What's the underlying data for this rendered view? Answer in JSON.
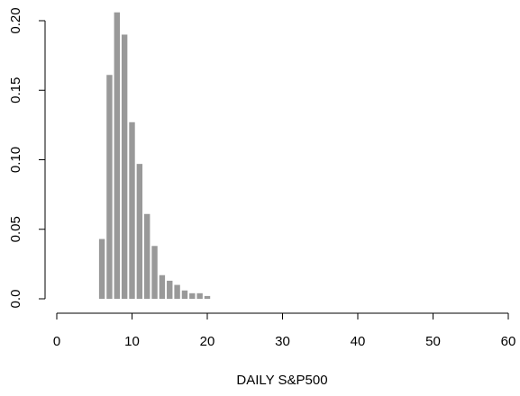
{
  "chart_data": {
    "type": "bar",
    "x_label": "DAILY S&P500",
    "x": [
      6,
      7,
      8,
      9,
      10,
      11,
      12,
      13,
      14,
      15,
      16,
      17,
      18,
      19,
      20
    ],
    "values": [
      0.043,
      0.161,
      0.206,
      0.19,
      0.127,
      0.097,
      0.061,
      0.038,
      0.017,
      0.013,
      0.01,
      0.006,
      0.004,
      0.004,
      0.002
    ],
    "color": "#999999",
    "xlim": [
      0,
      60
    ],
    "xticks": [
      0,
      10,
      20,
      30,
      40,
      50,
      60
    ],
    "ylim": [
      0,
      0.2
    ],
    "yticks": [
      {
        "value": 0,
        "label": "0.0"
      },
      0.05,
      {
        "value": 0.1,
        "label": "0.10"
      },
      0.15,
      {
        "value": 0.2,
        "label": "0.20"
      }
    ]
  }
}
